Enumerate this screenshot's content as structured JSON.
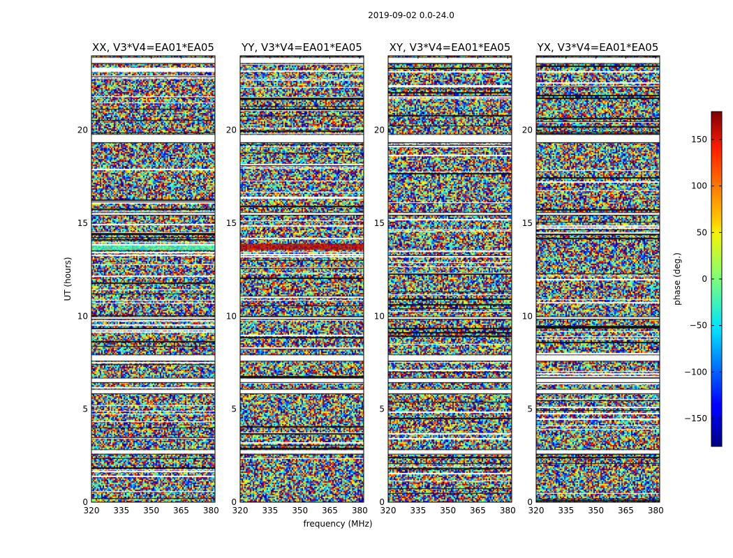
{
  "figure_title": "2019-09-02 0.0-24.0",
  "chart_data": {
    "type": "heatmap",
    "title": "2019-09-02 0.0-24.0",
    "xlabel": "frequency (MHz)",
    "ylabel": "UT (hours)",
    "xlim": [
      320,
      382
    ],
    "ylim": [
      0,
      24
    ],
    "xticks": [
      320,
      335,
      350,
      365,
      380
    ],
    "yticks": [
      0,
      5,
      10,
      15,
      20
    ],
    "panels": [
      {
        "title": "XX, V3*V4=EA01*EA05",
        "feature": {
          "ut": [
            13.6,
            13.9
          ],
          "phase": -20
        }
      },
      {
        "title": "YY, V3*V4=EA01*EA05",
        "feature": {
          "ut": [
            13.6,
            13.9
          ],
          "phase": 160
        }
      },
      {
        "title": "XY, V3*V4=EA01*EA05",
        "feature": null
      },
      {
        "title": "YX, V3*V4=EA01*EA05",
        "feature": null
      }
    ],
    "flagged_ut_bands": [
      [
        2.6,
        2.8
      ],
      [
        5.85,
        6.05
      ],
      [
        6.45,
        6.65
      ],
      [
        7.6,
        7.9
      ],
      [
        9.85,
        9.95
      ],
      [
        15.45,
        15.55
      ],
      [
        19.35,
        19.75
      ],
      [
        23.6,
        23.9
      ]
    ],
    "colorbar": {
      "label": "phase (deg.)",
      "range": [
        -180,
        180
      ],
      "ticks": [
        150,
        100,
        50,
        0,
        -50,
        -100,
        -150
      ],
      "tick_labels": [
        "150",
        "100",
        "50",
        "0",
        "−50",
        "−100",
        "−150"
      ],
      "colormap": "jet"
    }
  }
}
